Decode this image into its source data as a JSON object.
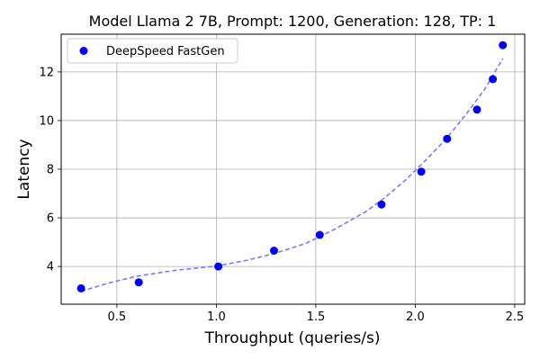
{
  "chart_data": {
    "type": "scatter",
    "title": "Model Llama 2 7B, Prompt: 1200, Generation: 128, TP: 1",
    "xlabel": "Throughput (queries/s)",
    "ylabel": "Latency",
    "xlim": [
      0.22,
      2.55
    ],
    "ylim": [
      2.45,
      13.55
    ],
    "xticks": [
      0.5,
      1.0,
      1.5,
      2.0,
      2.5
    ],
    "xtick_labels": [
      "0.5",
      "1.0",
      "1.5",
      "2.0",
      "2.5"
    ],
    "yticks": [
      4,
      6,
      8,
      10,
      12
    ],
    "ytick_labels": [
      "4",
      "6",
      "8",
      "10",
      "12"
    ],
    "grid": true,
    "legend_position": "top-left",
    "series": [
      {
        "name": "DeepSpeed FastGen",
        "marker": "circle",
        "color": "#0000ff",
        "x": [
          0.32,
          0.61,
          1.01,
          1.29,
          1.52,
          1.83,
          2.03,
          2.16,
          2.31,
          2.39,
          2.44
        ],
        "y": [
          3.1,
          3.35,
          4.0,
          4.65,
          5.3,
          6.55,
          7.9,
          9.25,
          10.45,
          11.7,
          13.1
        ]
      }
    ],
    "trendline": {
      "style": "dashed",
      "color": "#7b7bf2",
      "x": [
        0.32,
        0.45,
        0.6,
        0.8,
        1.0,
        1.15,
        1.3,
        1.45,
        1.6,
        1.75,
        1.85,
        1.95,
        2.05,
        2.15,
        2.25,
        2.35,
        2.44
      ],
      "y": [
        2.98,
        3.3,
        3.6,
        3.85,
        4.02,
        4.25,
        4.55,
        4.95,
        5.55,
        6.25,
        6.85,
        7.55,
        8.35,
        9.2,
        10.2,
        11.3,
        12.55
      ]
    }
  }
}
